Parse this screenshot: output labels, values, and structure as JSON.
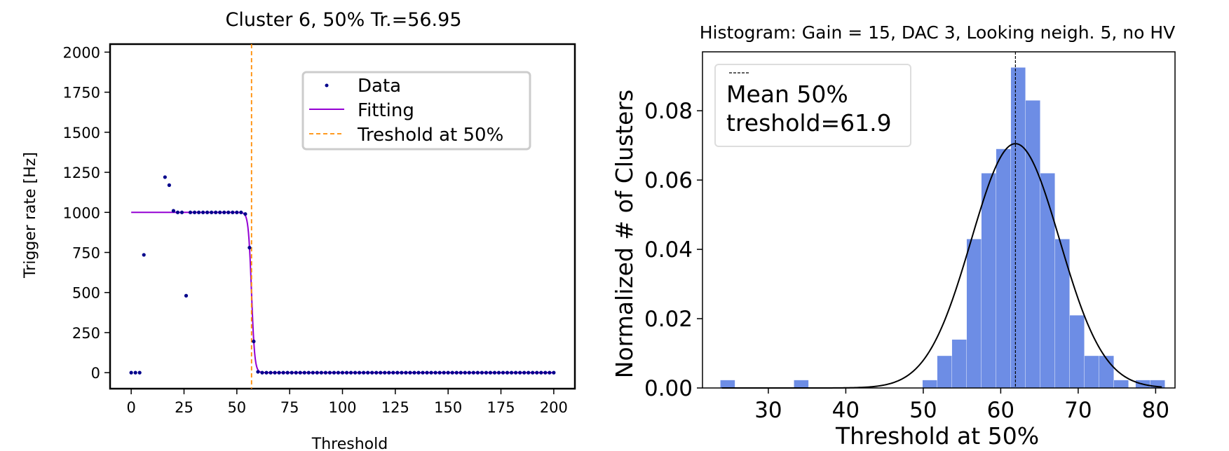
{
  "chart_data": [
    {
      "type": "scatter",
      "title": "Cluster 6, 50% Tr.=56.95",
      "xlabel": "Threshold",
      "ylabel": "Trigger rate [Hz]",
      "xlim": [
        -10,
        210
      ],
      "ylim": [
        -100,
        2050
      ],
      "xticks": [
        0,
        25,
        50,
        75,
        100,
        125,
        150,
        175,
        200
      ],
      "yticks": [
        0,
        250,
        500,
        750,
        1000,
        1250,
        1500,
        1750,
        2000
      ],
      "grid": false,
      "legend_position": "top-right",
      "series": [
        {
          "name": "Data",
          "kind": "points",
          "color": "#00008b",
          "points": [
            [
              0,
              0
            ],
            [
              2,
              0
            ],
            [
              4,
              0
            ],
            [
              6,
              735
            ],
            [
              8,
              null
            ],
            [
              10,
              null
            ],
            [
              12,
              null
            ],
            [
              14,
              null
            ],
            [
              16,
              1220
            ],
            [
              18,
              1170
            ],
            [
              20,
              1010
            ],
            [
              22,
              1000
            ],
            [
              24,
              1000
            ],
            [
              26,
              480
            ],
            [
              28,
              1000
            ],
            [
              30,
              1000
            ],
            [
              32,
              1000
            ],
            [
              34,
              1000
            ],
            [
              36,
              1000
            ],
            [
              38,
              1000
            ],
            [
              40,
              1000
            ],
            [
              42,
              1000
            ],
            [
              44,
              1000
            ],
            [
              46,
              1000
            ],
            [
              48,
              1000
            ],
            [
              50,
              1000
            ],
            [
              52,
              1000
            ],
            [
              54,
              990
            ],
            [
              56,
              780
            ],
            [
              58,
              195
            ],
            [
              60,
              5
            ],
            [
              62,
              0
            ],
            [
              64,
              0
            ],
            [
              66,
              0
            ],
            [
              68,
              0
            ],
            [
              70,
              0
            ],
            [
              72,
              0
            ],
            [
              74,
              0
            ],
            [
              76,
              0
            ],
            [
              78,
              0
            ],
            [
              80,
              0
            ],
            [
              82,
              0
            ],
            [
              84,
              0
            ],
            [
              86,
              0
            ],
            [
              88,
              0
            ],
            [
              90,
              0
            ],
            [
              92,
              0
            ],
            [
              94,
              0
            ],
            [
              96,
              0
            ],
            [
              98,
              0
            ],
            [
              100,
              0
            ],
            [
              102,
              0
            ],
            [
              104,
              0
            ],
            [
              106,
              0
            ],
            [
              108,
              0
            ],
            [
              110,
              0
            ],
            [
              112,
              0
            ],
            [
              114,
              0
            ],
            [
              116,
              0
            ],
            [
              118,
              0
            ],
            [
              120,
              0
            ],
            [
              122,
              0
            ],
            [
              124,
              0
            ],
            [
              126,
              0
            ],
            [
              128,
              0
            ],
            [
              130,
              0
            ],
            [
              132,
              0
            ],
            [
              134,
              0
            ],
            [
              136,
              0
            ],
            [
              138,
              0
            ],
            [
              140,
              0
            ],
            [
              142,
              0
            ],
            [
              144,
              0
            ],
            [
              146,
              0
            ],
            [
              148,
              0
            ],
            [
              150,
              0
            ],
            [
              152,
              0
            ],
            [
              154,
              0
            ],
            [
              156,
              0
            ],
            [
              158,
              0
            ],
            [
              160,
              0
            ],
            [
              162,
              0
            ],
            [
              164,
              0
            ],
            [
              166,
              0
            ],
            [
              168,
              0
            ],
            [
              170,
              0
            ],
            [
              172,
              0
            ],
            [
              174,
              0
            ],
            [
              176,
              0
            ],
            [
              178,
              0
            ],
            [
              180,
              0
            ],
            [
              182,
              0
            ],
            [
              184,
              0
            ],
            [
              186,
              0
            ],
            [
              188,
              0
            ],
            [
              190,
              0
            ],
            [
              192,
              0
            ],
            [
              194,
              0
            ],
            [
              196,
              0
            ],
            [
              198,
              0
            ],
            [
              200,
              0
            ]
          ]
        },
        {
          "name": "Fitting",
          "kind": "sigmoid_fit",
          "color": "#9400d3",
          "x_range": [
            0,
            200
          ],
          "plateau": 1000,
          "midpoint": 56.95,
          "width": 0.75
        },
        {
          "name": "Treshold at 50%",
          "kind": "vline",
          "color": "#ff8c00",
          "x": 56.95
        }
      ]
    },
    {
      "type": "bar",
      "title": "Histogram: Gain = 15,  DAC  3,  Looking neigh.  5,  no HV",
      "xlabel": "Threshold at 50%",
      "ylabel": "Normalized # of Clusters",
      "xlim": [
        21.5,
        82.5
      ],
      "ylim": [
        0,
        0.097
      ],
      "xticks": [
        30,
        40,
        50,
        60,
        70,
        80
      ],
      "yticks": [
        0.0,
        0.02,
        0.04,
        0.06,
        0.08
      ],
      "ytick_labels": [
        "0.00",
        "0.02",
        "0.04",
        "0.06",
        "0.08"
      ],
      "grid": false,
      "legend_position": "top-left",
      "bin_width": 1.9,
      "bar_color": "#6d8de5",
      "bins": [
        {
          "left": 23.8,
          "value": 0.0023
        },
        {
          "left": 33.3,
          "value": 0.0023
        },
        {
          "left": 49.9,
          "value": 0.0023
        },
        {
          "left": 51.8,
          "value": 0.0093
        },
        {
          "left": 53.7,
          "value": 0.014
        },
        {
          "left": 55.6,
          "value": 0.043
        },
        {
          "left": 57.5,
          "value": 0.062
        },
        {
          "left": 59.4,
          "value": 0.069
        },
        {
          "left": 61.3,
          "value": 0.0925
        },
        {
          "left": 63.2,
          "value": 0.083
        },
        {
          "left": 65.1,
          "value": 0.062
        },
        {
          "left": 67.0,
          "value": 0.043
        },
        {
          "left": 68.9,
          "value": 0.021
        },
        {
          "left": 70.8,
          "value": 0.0093
        },
        {
          "left": 72.7,
          "value": 0.0093
        },
        {
          "left": 74.6,
          "value": 0.0023
        },
        {
          "left": 77.4,
          "value": 0.0023
        },
        {
          "left": 79.3,
          "value": 0.0023
        }
      ],
      "gaussian_fit": {
        "mean": 61.9,
        "sigma": 5.7,
        "amplitude": 0.0705,
        "x_range": [
          24,
          81
        ],
        "color": "#000000"
      },
      "mean_line": {
        "x": 61.9,
        "color": "#000000"
      },
      "legend_label": "Mean 50%\ntreshold=61.9"
    }
  ]
}
